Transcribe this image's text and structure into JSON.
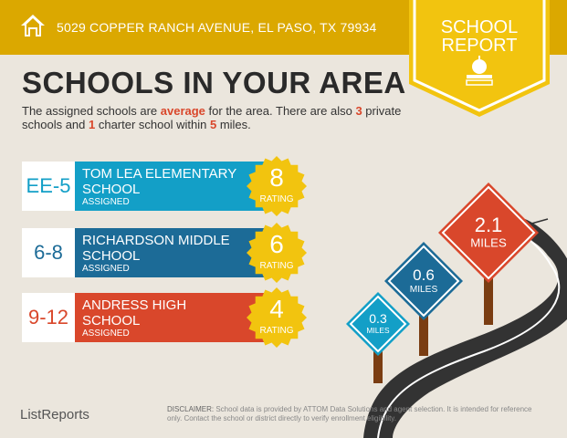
{
  "header": {
    "address": "5029 COPPER RANCH AVENUE, EL PASO, TX 79934",
    "icon": "home-icon"
  },
  "badge": {
    "line1": "SCHOOL",
    "line2": "REPORT",
    "icon": "apple-books-icon"
  },
  "title": "SCHOOLS IN YOUR AREA",
  "summary": {
    "p1": "The assigned schools are ",
    "quality": "average",
    "p2": " for the area. There are also ",
    "private_count": "3",
    "p3": " private schools and ",
    "charter_count": "1",
    "p4": " charter school within ",
    "miles": "5",
    "p5": " miles."
  },
  "schools": [
    {
      "grades": "EE-5",
      "name": "TOM LEA ELEMENTARY SCHOOL",
      "status": "ASSIGNED",
      "rating": "8",
      "rating_label": "RATING",
      "color": "#139fc7",
      "distance": "0.3",
      "distance_unit": "MILES"
    },
    {
      "grades": "6-8",
      "name": "RICHARDSON MIDDLE SCHOOL",
      "status": "ASSIGNED",
      "rating": "6",
      "rating_label": "RATING",
      "color": "#1c6b97",
      "distance": "0.6",
      "distance_unit": "MILES"
    },
    {
      "grades": "9-12",
      "name": "ANDRESS HIGH SCHOOL",
      "status": "ASSIGNED",
      "rating": "4",
      "rating_label": "RATING",
      "color": "#d9472b",
      "distance": "2.1",
      "distance_unit": "MILES"
    }
  ],
  "footer": {
    "brand": "ListReports",
    "disclaimer_label": "DISCLAIMER:",
    "disclaimer": " School data is provided by ATTOM Data Solutions and agent selection. It is intended for reference only. Contact the school or district directly to verify enrollment eligibility."
  },
  "colors": {
    "header": "#dba800",
    "badge": "#f2c40f",
    "background": "#ebe6dd"
  }
}
